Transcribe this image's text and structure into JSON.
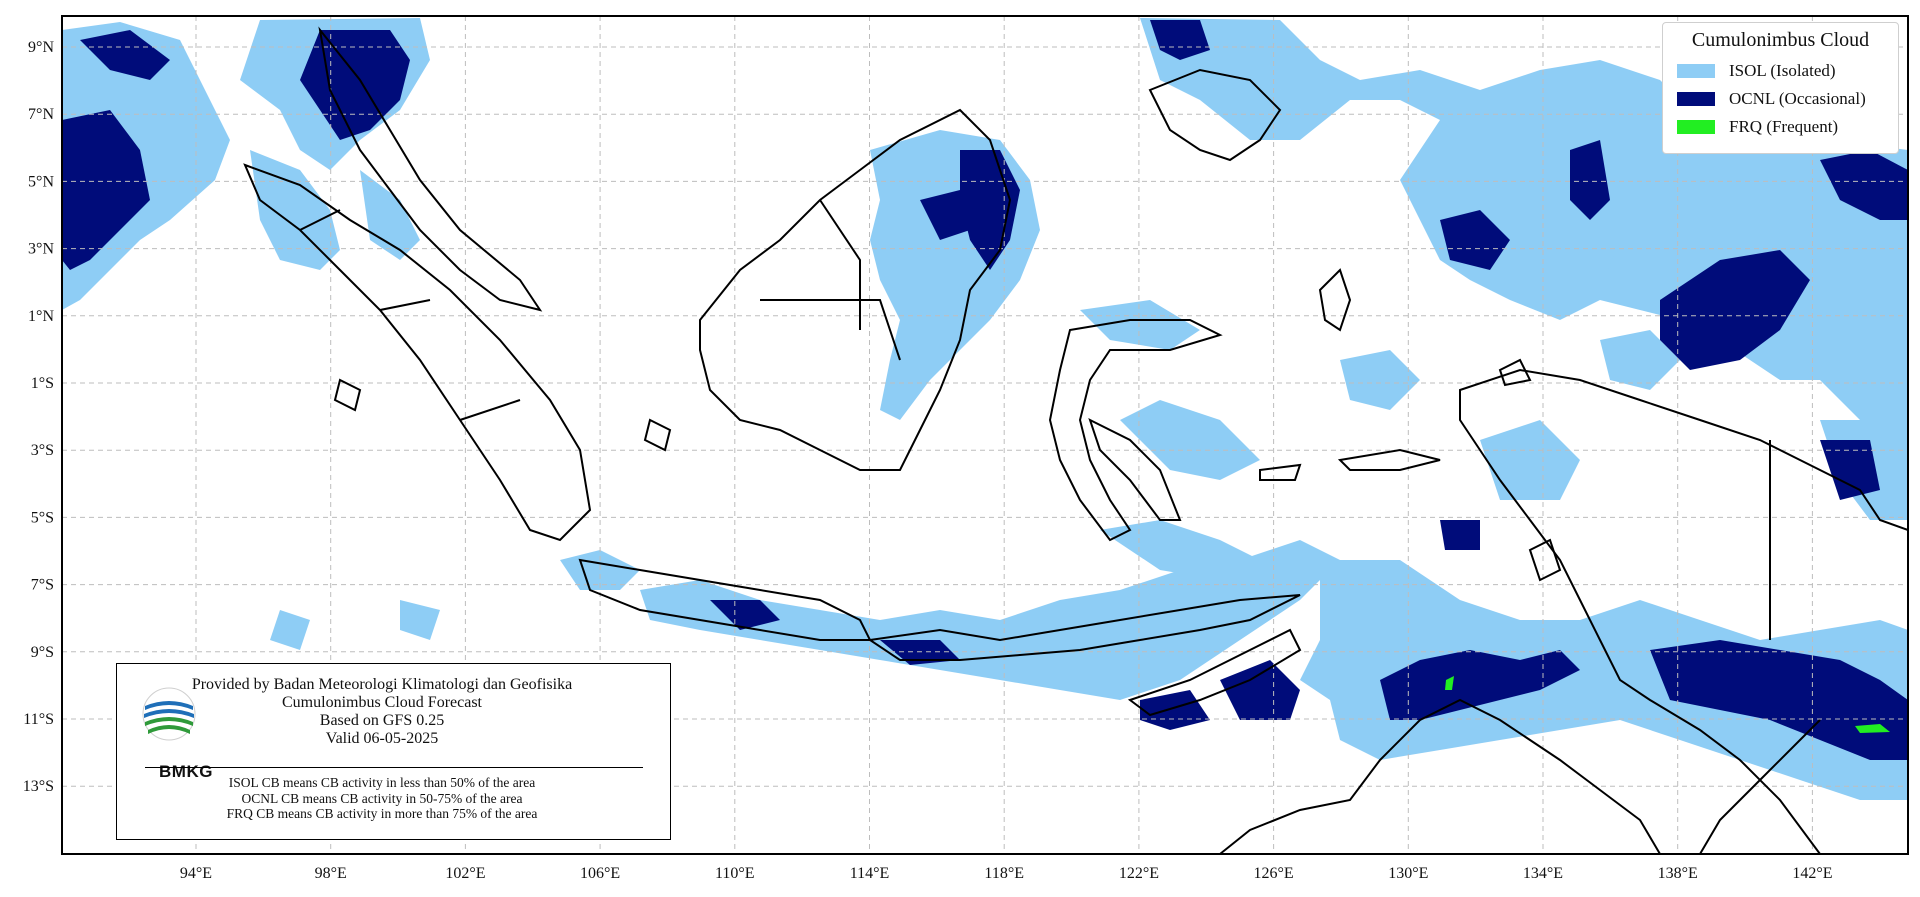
{
  "map": {
    "lat_labels": [
      "9°N",
      "7°N",
      "5°N",
      "3°N",
      "1°N",
      "1°S",
      "3°S",
      "5°S",
      "7°S",
      "9°S",
      "11°S",
      "13°S"
    ],
    "lon_labels": [
      "94°E",
      "98°E",
      "102°E",
      "106°E",
      "110°E",
      "114°E",
      "118°E",
      "122°E",
      "126°E",
      "130°E",
      "134°E",
      "138°E",
      "142°E"
    ],
    "colors": {
      "isol": "#8ecdf5",
      "ocnl": "#000c7a",
      "frq": "#22ee22",
      "coast": "#000000",
      "grid": "#bdbdbd"
    }
  },
  "legend": {
    "title": "Cumulonimbus Cloud",
    "items": [
      {
        "label": "ISOL (Isolated)",
        "color": "#8ecdf5"
      },
      {
        "label": "OCNL (Occasional)",
        "color": "#000c7a"
      },
      {
        "label": "FRQ (Frequent)",
        "color": "#22ee22"
      }
    ]
  },
  "info": {
    "line1": "Provided by Badan Meteorologi Klimatologi dan Geofisika",
    "line2": "Cumulonimbus Cloud Forecast",
    "line3": "Based on GFS 0.25",
    "line4": "Valid 06-05-2025",
    "logo_text": "BMKG",
    "notes": [
      "ISOL CB means CB activity in less than 50% of the area",
      "OCNL CB means CB activity in 50-75% of the area",
      "FRQ CB means CB activity in more than 75% of the area"
    ]
  }
}
